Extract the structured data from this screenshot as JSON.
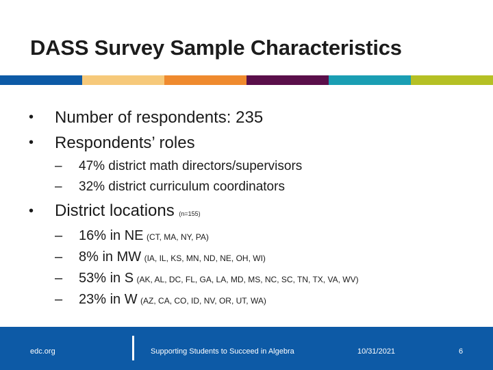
{
  "slide": {
    "title": "DASS Survey Sample Characteristics",
    "band_colors": [
      "#0d5aa6",
      "#f6c97a",
      "#ef8a2e",
      "#5a0f4a",
      "#1a9eb3",
      "#b5c024"
    ]
  },
  "bullets": {
    "respondents": "Number of respondents:  235",
    "roles": "Respondents’ roles",
    "roles_sub": [
      "47% district math directors/supervisors",
      "32% district curriculum coordinators"
    ],
    "locations": "District locations",
    "locations_note": "(n=155)",
    "locations_sub": [
      {
        "main": "16% in NE",
        "states": "(CT, MA, NY, PA)"
      },
      {
        "main": "8% in MW",
        "states": "(IA, IL, KS, MN, ND, NE, OH, WI)"
      },
      {
        "main": "53% in S",
        "states": "(AK, AL, DC, FL, GA, LA, MD, MS, NC, SC, TN, TX, VA, WV)"
      },
      {
        "main": "23% in W",
        "states": "(AZ, CA, CO, ID, NV, OR, UT, WA)"
      }
    ]
  },
  "footer": {
    "site": "edc.org",
    "tagline": "Supporting Students to Succeed in Algebra",
    "date": "10/31/2021",
    "page_number": "6"
  }
}
